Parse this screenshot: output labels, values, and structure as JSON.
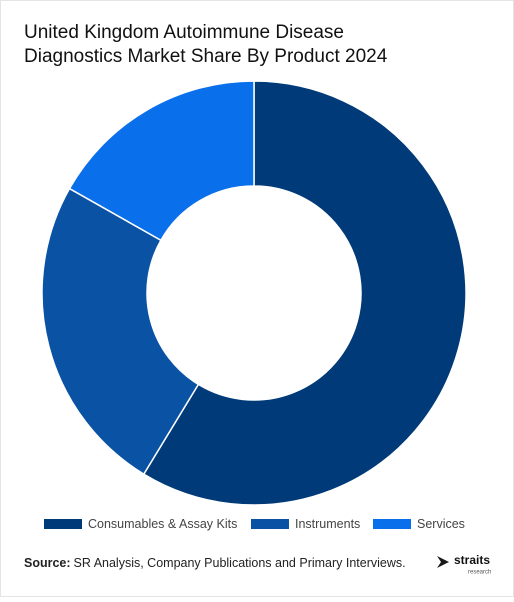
{
  "chart_data": {
    "type": "donut",
    "title": "United Kingdom Autoimmune Disease Diagnostics Market Share By Product 2024",
    "categories": [
      "Consumables & Assay Kits",
      "Instruments",
      "Services"
    ],
    "values": [
      58.7,
      24.5,
      16.8
    ],
    "colors": [
      "#003a78",
      "#0a52a4",
      "#0a6fea"
    ],
    "legend": "bottom"
  },
  "footer": {
    "source_label": "Source:",
    "source_text": "SR Analysis, Company Publications and Primary Interviews.",
    "logo": {
      "name": "straits",
      "tagline": "research"
    }
  }
}
